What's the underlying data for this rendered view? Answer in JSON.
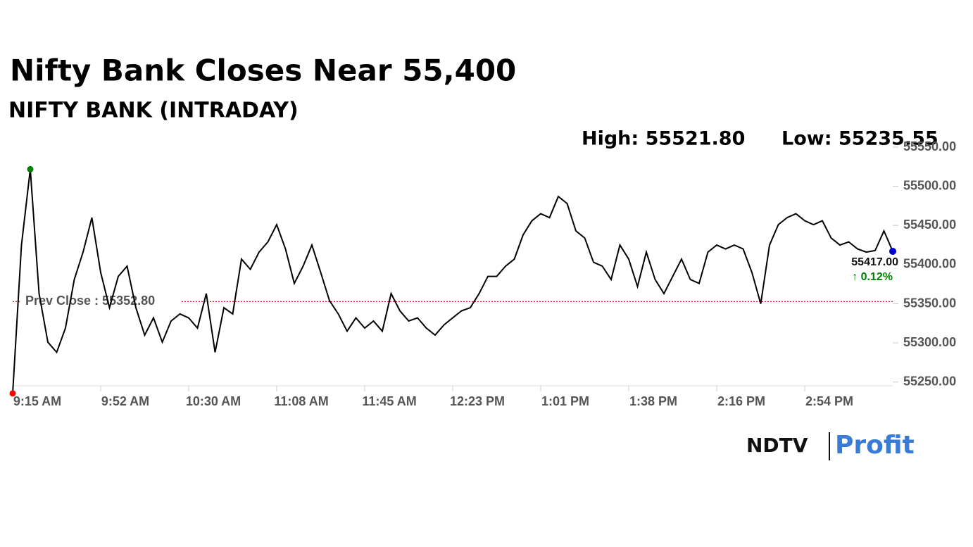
{
  "chart_data": {
    "type": "line",
    "title": "Nifty Bank Closes Near 55,400",
    "subtitle": "NIFTY BANK (INTRADAY)",
    "high_label": "High: 55521.80",
    "low_label": "Low: 55235.55",
    "categories": [
      "9:15 AM",
      null,
      null,
      null,
      null,
      null,
      null,
      null,
      null,
      null,
      "9:52 AM",
      null,
      null,
      null,
      null,
      null,
      null,
      null,
      null,
      null,
      "10:30 AM",
      null,
      null,
      null,
      null,
      null,
      null,
      null,
      null,
      null,
      "11:08 AM",
      null,
      null,
      null,
      null,
      null,
      null,
      null,
      null,
      null,
      "11:45 AM",
      null,
      null,
      null,
      null,
      null,
      null,
      null,
      null,
      null,
      "12:23 PM",
      null,
      null,
      null,
      null,
      null,
      null,
      null,
      null,
      null,
      "1:01 PM",
      null,
      null,
      null,
      null,
      null,
      null,
      null,
      null,
      null,
      "1:38 PM",
      null,
      null,
      null,
      null,
      null,
      null,
      null,
      null,
      null,
      "2:16 PM",
      null,
      null,
      null,
      null,
      null,
      null,
      null,
      null,
      null,
      "2:54 PM",
      null,
      null,
      null,
      null,
      null,
      null,
      null,
      null,
      null,
      null
    ],
    "series": [
      {
        "name": "NIFTY BANK",
        "color": "#000000",
        "values": [
          55235.55,
          55425,
          55521.8,
          55363,
          55301,
          55288,
          55319,
          55381,
          55416,
          55460,
          55390,
          55345,
          55385,
          55398,
          55345,
          55310,
          55332,
          55301,
          55328,
          55337,
          55332,
          55319,
          55363,
          55288,
          55345,
          55337,
          55407,
          55394,
          55416,
          55429,
          55451,
          55420,
          55376,
          55398,
          55425,
          55390,
          55354,
          55337,
          55315,
          55332,
          55319,
          55328,
          55315,
          55363,
          55341,
          55328,
          55332,
          55319,
          55310,
          55323,
          55332,
          55341,
          55345,
          55363,
          55385,
          55385,
          55398,
          55407,
          55438,
          55456,
          55465,
          55460,
          55487,
          55478,
          55443,
          55434,
          55403,
          55398,
          55381,
          55425,
          55407,
          55372,
          55416,
          55381,
          55363,
          55385,
          55407,
          55381,
          55376,
          55416,
          55425,
          55420,
          55425,
          55420,
          55390,
          55350,
          55425,
          55451,
          55460,
          55465,
          55456,
          55451,
          55456,
          55434,
          55425,
          55429,
          55420,
          55416,
          55418,
          55443,
          55417
        ]
      }
    ],
    "high_index": 2,
    "low_index": 0,
    "high_color": "#008000",
    "low_color": "#ff0000",
    "last_color": "#0000cc",
    "last_label": "55417.00",
    "change_label": "↑ 0.12%",
    "change_color": "#008000",
    "prev_close": {
      "value": 55352.8,
      "label": "Prev Close : 55352.80"
    },
    "prev_close_color": "#cc0000",
    "ylim": [
      55230,
      55550
    ],
    "yticks": [
      {
        "value": 55250,
        "label": "55250.00"
      },
      {
        "value": 55300,
        "label": "55300.00"
      },
      {
        "value": 55350,
        "label": "55350.00"
      },
      {
        "value": 55400,
        "label": "55400.00"
      },
      {
        "value": 55450,
        "label": "55450.00"
      },
      {
        "value": 55500,
        "label": "55500.00"
      },
      {
        "value": 55550,
        "label": "55550.00"
      }
    ]
  },
  "brand": {
    "left": "NDTV",
    "right": "Profit"
  }
}
